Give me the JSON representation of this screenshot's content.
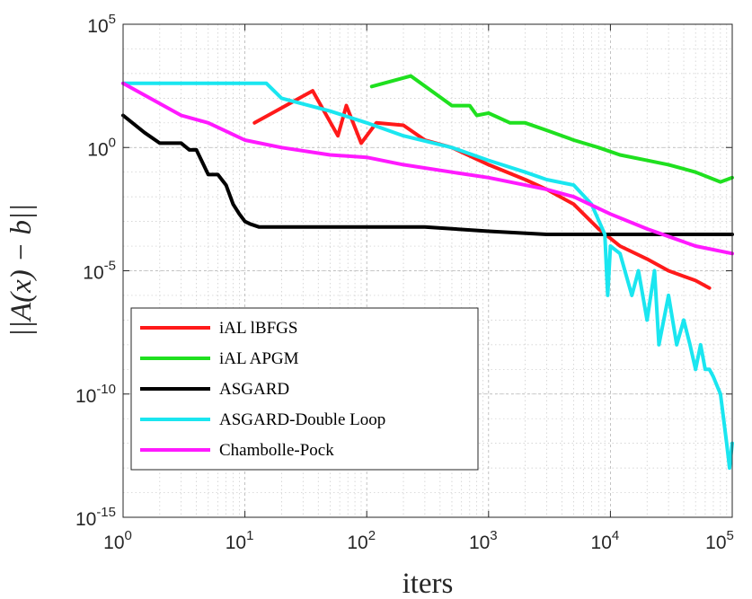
{
  "chart_data": {
    "type": "line",
    "title": "",
    "xlabel": "iters",
    "ylabel": "||A(x) − b||",
    "x_scale": "log",
    "y_scale": "log",
    "xlim": [
      1,
      100000
    ],
    "ylim": [
      1e-15,
      100000
    ],
    "grid": true,
    "legend_position": "bottom-left",
    "x_ticks": [
      {
        "value": 1,
        "label": "10",
        "exp": "0"
      },
      {
        "value": 10,
        "label": "10",
        "exp": "1"
      },
      {
        "value": 100,
        "label": "10",
        "exp": "2"
      },
      {
        "value": 1000,
        "label": "10",
        "exp": "3"
      },
      {
        "value": 10000,
        "label": "10",
        "exp": "4"
      },
      {
        "value": 100000,
        "label": "10",
        "exp": "5"
      }
    ],
    "y_ticks": [
      {
        "value": 1e-15,
        "label": "10",
        "exp": "-15"
      },
      {
        "value": 1e-10,
        "label": "10",
        "exp": "-10"
      },
      {
        "value": 1e-05,
        "label": "10",
        "exp": "-5"
      },
      {
        "value": 1,
        "label": "10",
        "exp": "0"
      },
      {
        "value": 100000,
        "label": "10",
        "exp": "5"
      }
    ],
    "series": [
      {
        "name": "iAL lBFGS",
        "color": "#ff1a1a",
        "x": [
          12,
          36,
          58,
          68,
          90,
          120,
          200,
          300,
          500,
          1000,
          2000,
          3000,
          5000,
          8000,
          12000,
          20000,
          30000,
          50000,
          65000
        ],
        "y": [
          10,
          200,
          3,
          50,
          1.5,
          10,
          8,
          2,
          1,
          0.2,
          0.05,
          0.02,
          0.005,
          0.0005,
          0.0001,
          3e-05,
          1e-05,
          4e-06,
          2e-06
        ]
      },
      {
        "name": "iAL APGM",
        "color": "#1fe01f",
        "x": [
          110,
          230,
          500,
          700,
          800,
          1000,
          1500,
          2000,
          3000,
          5000,
          8000,
          12000,
          20000,
          30000,
          50000,
          80000,
          100000
        ],
        "y": [
          300,
          800,
          50,
          50,
          20,
          25,
          10,
          10,
          5,
          2,
          1,
          0.5,
          0.3,
          0.2,
          0.1,
          0.04,
          0.06
        ]
      },
      {
        "name": "ASGARD",
        "color": "#000000",
        "x": [
          1,
          1.5,
          2,
          3,
          3.5,
          4,
          5,
          6,
          7,
          8,
          9,
          10,
          11,
          13,
          15,
          20,
          50,
          100,
          300,
          1000,
          3000,
          10000,
          100000
        ],
        "y": [
          20,
          4,
          1.5,
          1.5,
          0.8,
          0.8,
          0.08,
          0.08,
          0.03,
          0.005,
          0.002,
          0.001,
          0.0008,
          0.0006,
          0.0006,
          0.0006,
          0.0006,
          0.0006,
          0.0006,
          0.0004,
          0.0003,
          0.0003,
          0.0003
        ]
      },
      {
        "name": "ASGARD-Double Loop",
        "color": "#1ae6f0",
        "x": [
          1,
          2,
          5,
          10,
          15,
          20,
          50,
          100,
          200,
          500,
          1000,
          2000,
          3000,
          5000,
          7000,
          9000,
          9500,
          10000,
          12000,
          15000,
          17000,
          20000,
          23000,
          25000,
          30000,
          35000,
          40000,
          45000,
          50000,
          55000,
          60000,
          65000,
          70000,
          80000,
          90000,
          95000,
          100000
        ],
        "y": [
          400,
          400,
          400,
          400,
          400,
          100,
          30,
          10,
          3,
          1,
          0.3,
          0.1,
          0.05,
          0.03,
          0.005,
          0.0003,
          1e-06,
          0.0001,
          5e-05,
          1e-06,
          1e-05,
          1e-07,
          1e-05,
          1e-08,
          1e-06,
          1e-08,
          1e-07,
          1e-08,
          1e-09,
          1e-08,
          1e-09,
          1e-09,
          5e-10,
          1e-10,
          1e-12,
          1e-13,
          1e-12
        ]
      },
      {
        "name": "Chambolle-Pock",
        "color": "#ff1aff",
        "x": [
          1,
          3,
          5,
          10,
          20,
          50,
          100,
          200,
          500,
          1000,
          2000,
          3000,
          5000,
          10000,
          20000,
          50000,
          100000
        ],
        "y": [
          400,
          20,
          10,
          2,
          1,
          0.5,
          0.4,
          0.2,
          0.1,
          0.06,
          0.03,
          0.02,
          0.01,
          0.002,
          0.0005,
          0.0001,
          5e-05
        ]
      }
    ]
  }
}
